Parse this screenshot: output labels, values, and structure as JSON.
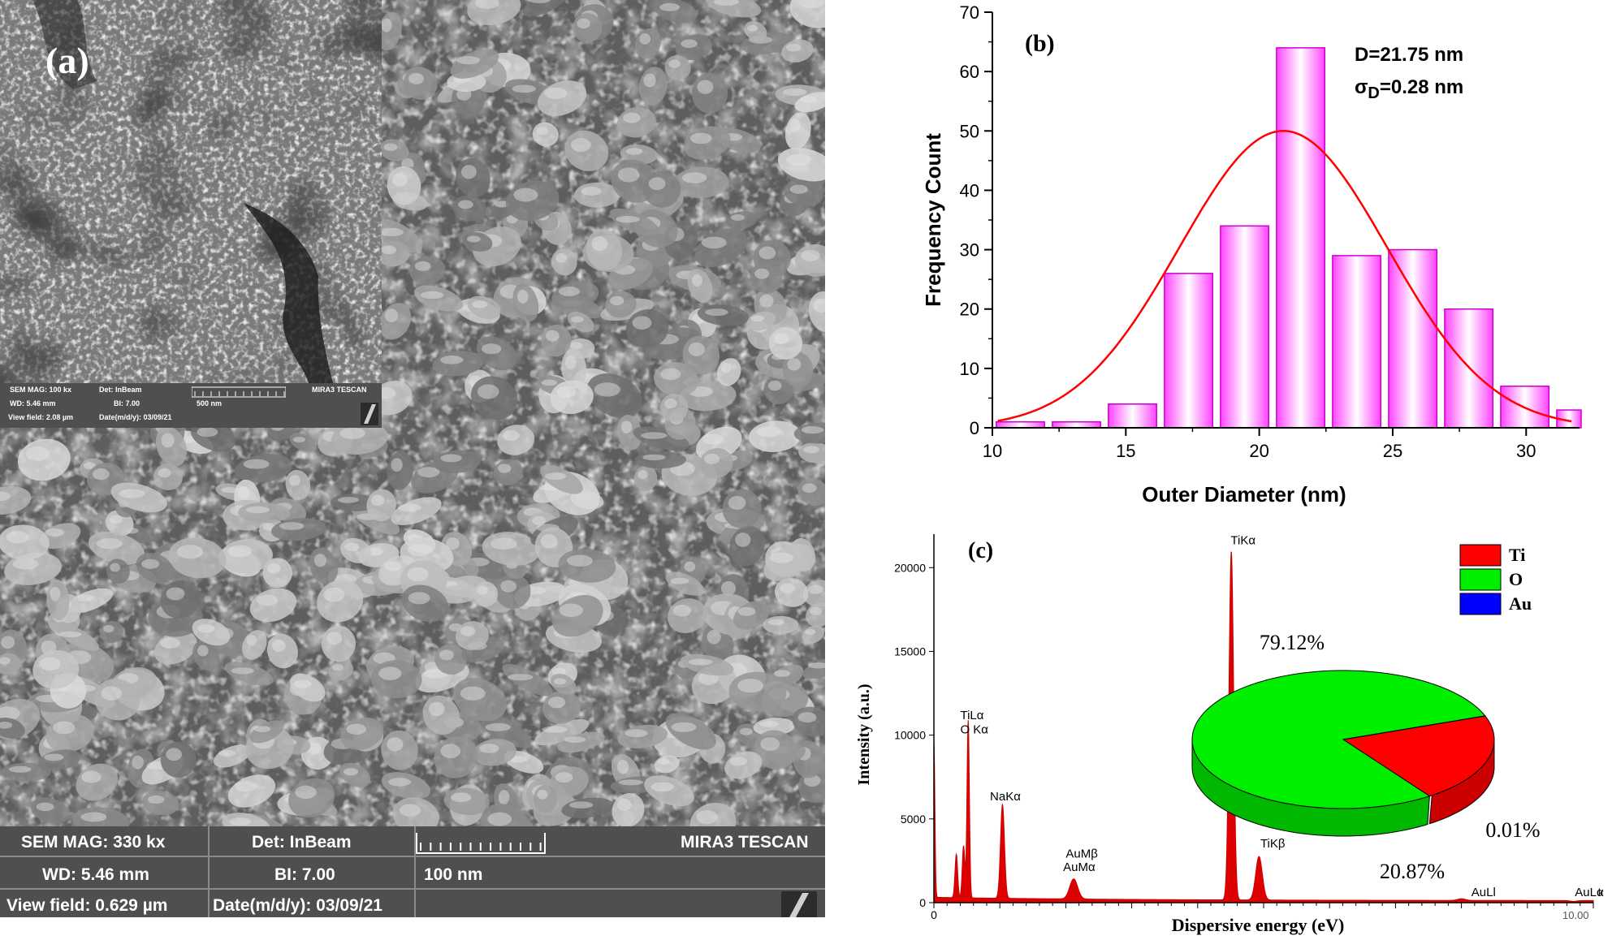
{
  "panel_a": {
    "label": "(a)",
    "main": {
      "sem_mag": "SEM MAG: 330 kx",
      "det": "Det: InBeam",
      "wd": "WD: 5.46 mm",
      "bi": "BI: 7.00",
      "scale": "100 nm",
      "brand": "MIRA3 TESCAN",
      "view_field": "View field: 0.629 µm",
      "date": "Date(m/d/y): 03/09/21"
    },
    "inset": {
      "sem_mag": "SEM MAG: 100 kx",
      "det": "Det: InBeam",
      "wd": "WD: 5.46 mm",
      "bi": "BI: 7.00",
      "scale": "500 nm",
      "brand": "MIRA3 TESCAN",
      "view_field": "View field: 2.08 µm",
      "date": "Date(m/d/y): 03/09/21"
    }
  },
  "chart_data": [
    {
      "type": "bar",
      "panel_label": "(b)",
      "xlabel": "Outer Diameter (nm)",
      "ylabel": "Frequency Count",
      "xlim": [
        10,
        32
      ],
      "ylim": [
        0,
        70
      ],
      "x_ticks": [
        10,
        15,
        20,
        25,
        30
      ],
      "y_ticks": [
        0,
        10,
        20,
        30,
        40,
        50,
        60,
        70
      ],
      "bin_width": 2.1,
      "bin_centers": [
        11.05,
        13.15,
        15.25,
        17.35,
        19.45,
        21.55,
        23.65,
        25.75,
        27.85,
        29.95,
        32.05
      ],
      "values": [
        1,
        1,
        4,
        26,
        34,
        64,
        29,
        30,
        20,
        7,
        3
      ],
      "fit_curve": {
        "type": "gaussian",
        "center": 20.9,
        "sigma": 3.9,
        "peak": 50,
        "color": "#ff0000"
      },
      "annotations": {
        "mean": "D=21.75 nm",
        "sigma_symbol": "σ",
        "sigma_sub": "D",
        "sigma_value": "=0.28 nm"
      },
      "bar_color": "#ff66ff"
    },
    {
      "type": "line",
      "panel_label": "(c)",
      "xlabel": "Dispersive energy (eV)",
      "ylabel": "Intensity (a.u.)",
      "xlim": [
        0,
        10
      ],
      "ylim": [
        0,
        22000
      ],
      "x_ticks": [
        "0",
        "10.00"
      ],
      "y_ticks": [
        0,
        5000,
        10000,
        15000,
        20000
      ],
      "x_axis_suffix": "k",
      "peaks": [
        {
          "x": 0.0,
          "y": 9500
        },
        {
          "x": 0.34,
          "y": 2800
        },
        {
          "x": 0.45,
          "y": 3300
        },
        {
          "x": 0.52,
          "y": 10800
        },
        {
          "x": 1.04,
          "y": 5800
        },
        {
          "x": 2.12,
          "y": 1400
        },
        {
          "x": 4.51,
          "y": 21000
        },
        {
          "x": 4.93,
          "y": 2800
        },
        {
          "x": 8.0,
          "y": 300
        },
        {
          "x": 9.7,
          "y": 150
        }
      ],
      "peak_labels": [
        "TiLα",
        "O Kα",
        "NaKα",
        "AuMβ",
        "AuMα",
        "TiKα",
        "TiKβ",
        "AuLl",
        "AuLα"
      ],
      "pie": {
        "slices": [
          {
            "name": "Ti",
            "percent": 20.87,
            "color": "#ff0000"
          },
          {
            "name": "O",
            "percent": 79.12,
            "color": "#00ee00"
          },
          {
            "name": "Au",
            "percent": 0.01,
            "color": "#0000ff"
          }
        ],
        "labels": [
          "79.12%",
          "20.87%",
          "0.01%"
        ]
      },
      "legend": [
        "Ti",
        "O",
        "Au"
      ],
      "color": "#dd0000"
    }
  ]
}
